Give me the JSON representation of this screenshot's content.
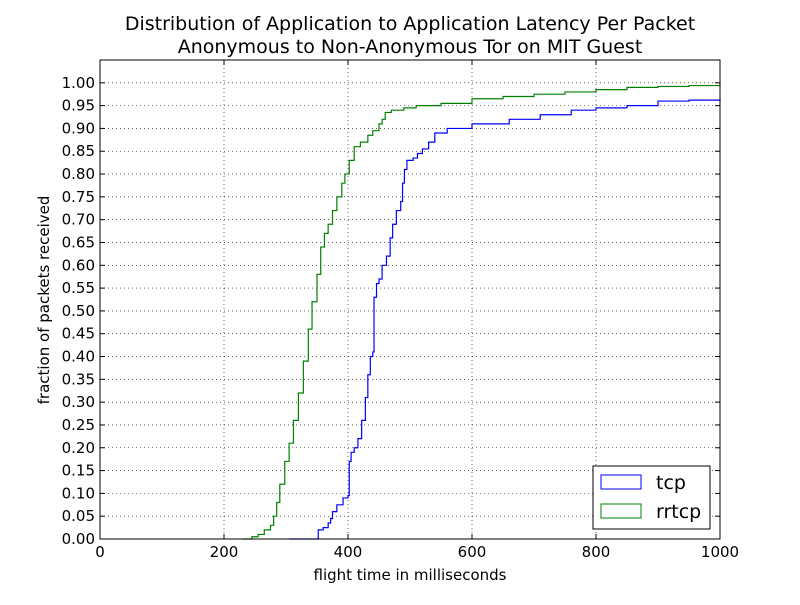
{
  "chart_data": {
    "type": "line",
    "title": "Distribution of Application to Application Latency Per Packet",
    "subtitle": "Anonymous to Non-Anonymous Tor on MIT Guest",
    "xlabel": "flight time in milliseconds",
    "ylabel": "fraction of packets received",
    "xlim": [
      0,
      1000
    ],
    "ylim": [
      0,
      1.05
    ],
    "x_ticks": [
      0,
      200,
      400,
      600,
      800,
      1000
    ],
    "x_tick_labels": [
      "0",
      "200",
      "400",
      "600",
      "800",
      "1000"
    ],
    "y_ticks": [
      0.0,
      0.05,
      0.1,
      0.15,
      0.2,
      0.25,
      0.3,
      0.35,
      0.4,
      0.45,
      0.5,
      0.55,
      0.6,
      0.65,
      0.7,
      0.75,
      0.8,
      0.85,
      0.9,
      0.95,
      1.0
    ],
    "y_tick_labels": [
      "0.00",
      "0.05",
      "0.10",
      "0.15",
      "0.20",
      "0.25",
      "0.30",
      "0.35",
      "0.40",
      "0.45",
      "0.50",
      "0.55",
      "0.60",
      "0.65",
      "0.70",
      "0.75",
      "0.80",
      "0.85",
      "0.90",
      "0.95",
      "1.00"
    ],
    "grid": true,
    "legend_position": "bottom-right",
    "series": [
      {
        "name": "tcp",
        "color": "#0000ff",
        "points": [
          [
            305,
            0.0
          ],
          [
            350,
            0.0
          ],
          [
            352,
            0.02
          ],
          [
            360,
            0.025
          ],
          [
            368,
            0.035
          ],
          [
            372,
            0.045
          ],
          [
            375,
            0.06
          ],
          [
            382,
            0.075
          ],
          [
            392,
            0.09
          ],
          [
            400,
            0.095
          ],
          [
            402,
            0.17
          ],
          [
            405,
            0.19
          ],
          [
            410,
            0.2
          ],
          [
            416,
            0.22
          ],
          [
            422,
            0.26
          ],
          [
            428,
            0.31
          ],
          [
            432,
            0.36
          ],
          [
            436,
            0.4
          ],
          [
            440,
            0.41
          ],
          [
            442,
            0.53
          ],
          [
            446,
            0.56
          ],
          [
            450,
            0.57
          ],
          [
            455,
            0.6
          ],
          [
            462,
            0.62
          ],
          [
            468,
            0.66
          ],
          [
            472,
            0.69
          ],
          [
            478,
            0.72
          ],
          [
            485,
            0.74
          ],
          [
            488,
            0.78
          ],
          [
            491,
            0.81
          ],
          [
            495,
            0.83
          ],
          [
            505,
            0.835
          ],
          [
            512,
            0.845
          ],
          [
            520,
            0.855
          ],
          [
            530,
            0.87
          ],
          [
            540,
            0.89
          ],
          [
            560,
            0.9
          ],
          [
            600,
            0.91
          ],
          [
            650,
            0.91
          ],
          [
            660,
            0.92
          ],
          [
            700,
            0.92
          ],
          [
            710,
            0.93
          ],
          [
            750,
            0.93
          ],
          [
            760,
            0.94
          ],
          [
            800,
            0.945
          ],
          [
            850,
            0.95
          ],
          [
            900,
            0.96
          ],
          [
            950,
            0.962
          ],
          [
            1000,
            0.965
          ]
        ]
      },
      {
        "name": "rrtcp",
        "color": "#008000",
        "points": [
          [
            230,
            0.0
          ],
          [
            245,
            0.005
          ],
          [
            255,
            0.01
          ],
          [
            265,
            0.02
          ],
          [
            275,
            0.03
          ],
          [
            280,
            0.05
          ],
          [
            285,
            0.08
          ],
          [
            290,
            0.12
          ],
          [
            298,
            0.17
          ],
          [
            305,
            0.21
          ],
          [
            312,
            0.26
          ],
          [
            320,
            0.32
          ],
          [
            328,
            0.39
          ],
          [
            336,
            0.46
          ],
          [
            342,
            0.52
          ],
          [
            350,
            0.58
          ],
          [
            356,
            0.64
          ],
          [
            362,
            0.67
          ],
          [
            368,
            0.69
          ],
          [
            375,
            0.72
          ],
          [
            382,
            0.75
          ],
          [
            390,
            0.78
          ],
          [
            395,
            0.8
          ],
          [
            402,
            0.83
          ],
          [
            410,
            0.86
          ],
          [
            420,
            0.87
          ],
          [
            432,
            0.885
          ],
          [
            440,
            0.895
          ],
          [
            450,
            0.91
          ],
          [
            455,
            0.92
          ],
          [
            460,
            0.935
          ],
          [
            470,
            0.94
          ],
          [
            490,
            0.945
          ],
          [
            510,
            0.95
          ],
          [
            550,
            0.955
          ],
          [
            600,
            0.965
          ],
          [
            650,
            0.97
          ],
          [
            700,
            0.975
          ],
          [
            750,
            0.98
          ],
          [
            800,
            0.985
          ],
          [
            850,
            0.99
          ],
          [
            900,
            0.992
          ],
          [
            950,
            0.994
          ],
          [
            1000,
            0.998
          ]
        ]
      }
    ]
  }
}
